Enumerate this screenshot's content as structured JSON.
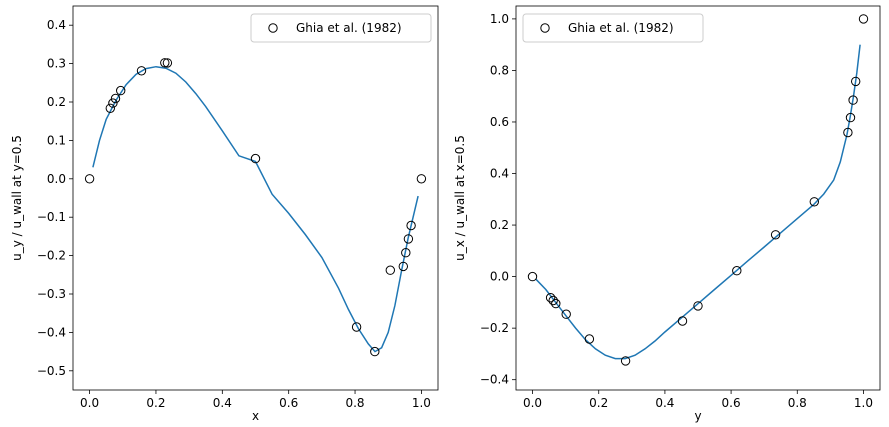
{
  "chart_data": [
    {
      "type": "line",
      "xlabel": "x",
      "ylabel": "u_y / u_wall at y=0.5",
      "xlim": [
        -0.05,
        1.05
      ],
      "ylim": [
        -0.55,
        0.45
      ],
      "xticks": [
        0.0,
        0.2,
        0.4,
        0.6,
        0.8,
        1.0
      ],
      "xtick_labels": [
        "0.0",
        "0.2",
        "0.4",
        "0.6",
        "0.8",
        "1.0"
      ],
      "yticks": [
        -0.5,
        -0.4,
        -0.3,
        -0.2,
        -0.1,
        0.0,
        0.1,
        0.2,
        0.3,
        0.4
      ],
      "ytick_labels": [
        "−0.5",
        "−0.4",
        "−0.3",
        "−0.2",
        "−0.1",
        "0.0",
        "0.1",
        "0.2",
        "0.3",
        "0.4"
      ],
      "legend": {
        "label": "Ghia et al. (1982)",
        "position": "upper right"
      },
      "colors": {
        "line": "#1f77b4",
        "marker_edge": "#000000"
      },
      "series": [
        {
          "kind": "line",
          "x": [
            0.01,
            0.03,
            0.05,
            0.08,
            0.11,
            0.14,
            0.17,
            0.2,
            0.23,
            0.26,
            0.29,
            0.32,
            0.35,
            0.4,
            0.45,
            0.5,
            0.55,
            0.6,
            0.65,
            0.7,
            0.75,
            0.78,
            0.81,
            0.84,
            0.86,
            0.88,
            0.9,
            0.92,
            0.94,
            0.96,
            0.975,
            0.99
          ],
          "y": [
            0.03,
            0.1,
            0.155,
            0.205,
            0.245,
            0.272,
            0.287,
            0.292,
            0.288,
            0.275,
            0.252,
            0.222,
            0.188,
            0.125,
            0.06,
            0.045,
            -0.04,
            -0.09,
            -0.145,
            -0.205,
            -0.285,
            -0.34,
            -0.39,
            -0.43,
            -0.45,
            -0.44,
            -0.4,
            -0.33,
            -0.24,
            -0.155,
            -0.1,
            -0.045
          ]
        },
        {
          "kind": "scatter",
          "name": "Ghia et al. (1982)",
          "x": [
            0.0,
            0.0625,
            0.0703,
            0.0781,
            0.0938,
            0.1563,
            0.2266,
            0.2344,
            0.5,
            0.8047,
            0.8594,
            0.9063,
            0.9453,
            0.9531,
            0.9609,
            0.9688,
            1.0
          ],
          "y": [
            0.0,
            0.1836,
            0.1971,
            0.2092,
            0.2297,
            0.2812,
            0.302,
            0.3017,
            0.0526,
            -0.3859,
            -0.4499,
            -0.238,
            -0.228,
            -0.1925,
            -0.1566,
            -0.1215,
            0.0
          ]
        }
      ]
    },
    {
      "type": "line",
      "xlabel": "y",
      "ylabel": "u_x / u_wall at x=0.5",
      "xlim": [
        -0.05,
        1.05
      ],
      "ylim": [
        -0.44,
        1.05
      ],
      "xticks": [
        0.0,
        0.2,
        0.4,
        0.6,
        0.8,
        1.0
      ],
      "xtick_labels": [
        "0.0",
        "0.2",
        "0.4",
        "0.6",
        "0.8",
        "1.0"
      ],
      "yticks": [
        -0.4,
        -0.2,
        0.0,
        0.2,
        0.4,
        0.6,
        0.8,
        1.0
      ],
      "ytick_labels": [
        "−0.4",
        "−0.2",
        "0.0",
        "0.2",
        "0.4",
        "0.6",
        "0.8",
        "1.0"
      ],
      "legend": {
        "label": "Ghia et al. (1982)",
        "position": "upper left"
      },
      "colors": {
        "line": "#1f77b4",
        "marker_edge": "#000000"
      },
      "series": [
        {
          "kind": "line",
          "x": [
            0.01,
            0.04,
            0.07,
            0.1,
            0.13,
            0.16,
            0.19,
            0.22,
            0.25,
            0.28,
            0.31,
            0.34,
            0.37,
            0.4,
            0.45,
            0.5,
            0.55,
            0.6,
            0.65,
            0.7,
            0.75,
            0.8,
            0.85,
            0.88,
            0.91,
            0.93,
            0.95,
            0.96,
            0.97,
            0.98,
            0.99
          ],
          "y": [
            -0.01,
            -0.05,
            -0.1,
            -0.15,
            -0.2,
            -0.245,
            -0.28,
            -0.305,
            -0.318,
            -0.318,
            -0.305,
            -0.28,
            -0.25,
            -0.215,
            -0.16,
            -0.105,
            -0.05,
            0.005,
            0.06,
            0.115,
            0.17,
            0.225,
            0.28,
            0.32,
            0.375,
            0.445,
            0.55,
            0.62,
            0.7,
            0.79,
            0.9
          ]
        },
        {
          "kind": "scatter",
          "name": "Ghia et al. (1982)",
          "x": [
            0.0,
            0.0547,
            0.0625,
            0.0703,
            0.1016,
            0.1719,
            0.2813,
            0.4531,
            0.5,
            0.6172,
            0.7344,
            0.8516,
            0.9531,
            0.9609,
            0.9688,
            0.9766,
            1.0
          ],
          "y": [
            0.0,
            -0.0819,
            -0.0928,
            -0.1046,
            -0.1457,
            -0.2423,
            -0.3272,
            -0.1722,
            -0.1137,
            0.0228,
            0.1621,
            0.2904,
            0.5591,
            0.6168,
            0.6848,
            0.7573,
            1.0
          ]
        }
      ]
    }
  ]
}
